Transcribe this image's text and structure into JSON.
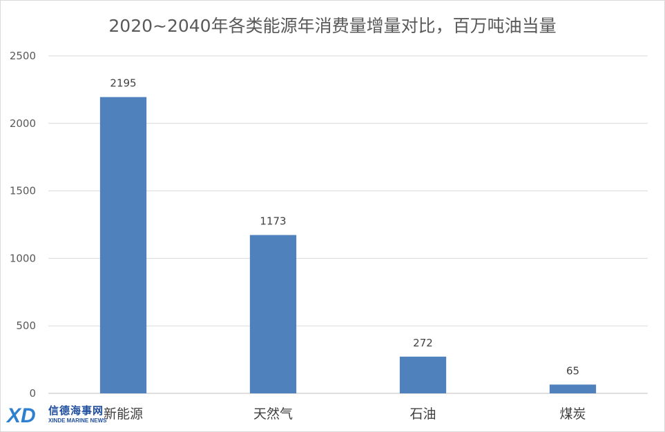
{
  "chart_data": {
    "type": "bar",
    "title": "2020~2040年各类能源年消费量增量对比，百万吨油当量",
    "categories": [
      "新能源",
      "天然气",
      "石油",
      "煤炭"
    ],
    "values": [
      2195,
      1173,
      272,
      65
    ],
    "data_labels": [
      "2195",
      "1173",
      "272",
      "65"
    ],
    "ylim": [
      0,
      2500
    ],
    "yticks": [
      0,
      500,
      1000,
      1500,
      2000,
      2500
    ],
    "grid": true,
    "legend": "none",
    "bar_color": "#4f81bd"
  },
  "watermark": {
    "logo_text": "XD",
    "name_cn": "信德海事网",
    "name_en": "XINDE MARINE NEWS"
  }
}
